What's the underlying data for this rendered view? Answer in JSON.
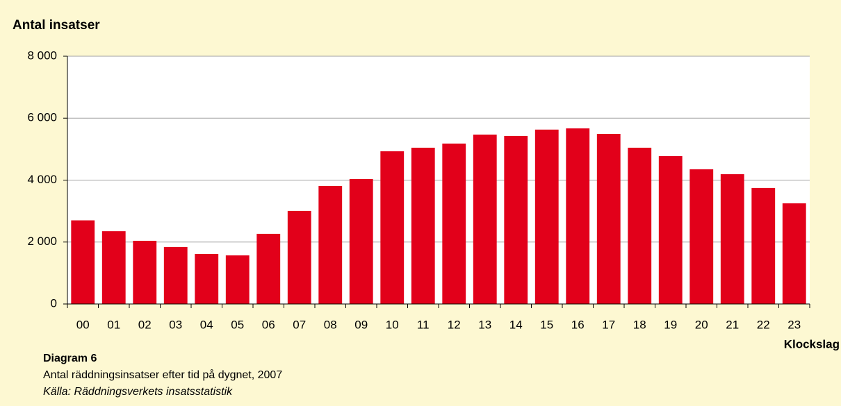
{
  "chart_data": {
    "type": "bar",
    "y_label": "Antal insatser",
    "x_label": "Klockslag",
    "caption_title": "Diagram 6",
    "caption": "Antal räddningsinsatser efter tid på dygnet, 2007",
    "source": "Källa: Räddningsverkets insatsstatistik",
    "categories": [
      "00",
      "01",
      "02",
      "03",
      "04",
      "05",
      "06",
      "07",
      "08",
      "09",
      "10",
      "11",
      "12",
      "13",
      "14",
      "15",
      "16",
      "17",
      "18",
      "19",
      "20",
      "21",
      "22",
      "23"
    ],
    "values": [
      2700,
      2350,
      2040,
      1840,
      1615,
      1570,
      2265,
      3005,
      3810,
      4035,
      4930,
      5045,
      5180,
      5470,
      5425,
      5630,
      5670,
      5490,
      5045,
      4775,
      4350,
      4190,
      3745,
      3250
    ],
    "color": "#e2001a",
    "ylim": [
      0,
      8000
    ],
    "yticks": [
      0,
      {
        "value": 2000,
        "label": "2 000"
      },
      {
        "value": 4000,
        "label": "4 000"
      },
      {
        "value": 6000,
        "label": "6 000"
      },
      {
        "value": 8000,
        "label": "8 000"
      }
    ],
    "grid": true
  }
}
